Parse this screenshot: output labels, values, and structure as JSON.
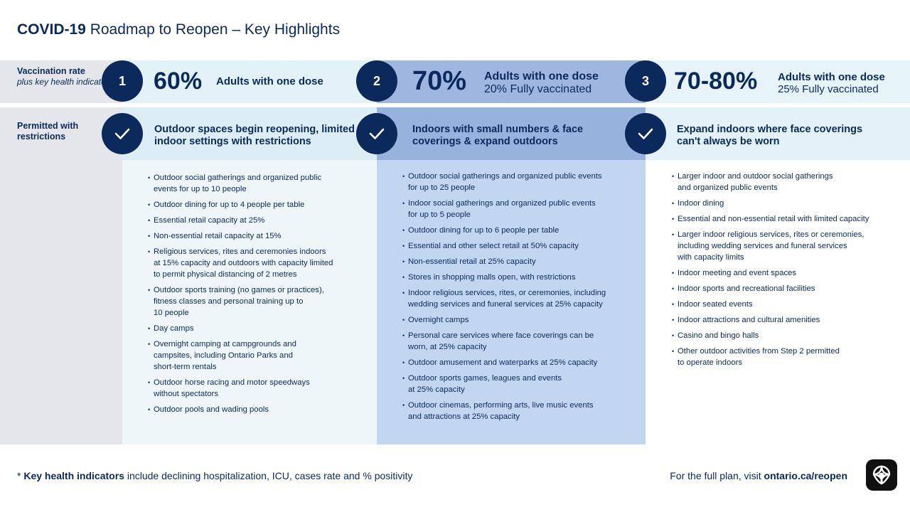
{
  "header": {
    "title_bold": "COVID-19",
    "title_rest": " Roadmap to Reopen – Key Highlights"
  },
  "rows": {
    "vaccination": {
      "label": "Vaccination rate",
      "sublabel": "plus key health indicators*"
    },
    "permitted": {
      "label": "Permitted with restrictions"
    }
  },
  "steps": [
    {
      "number": "1",
      "percent": "60%",
      "dose_line1": "Adults with one dose",
      "dose_line2": "",
      "heading": "Outdoor spaces begin reopening, limited indoor settings with restrictions",
      "items": [
        "Outdoor social gatherings and organized public\nevents for up to 10 people",
        "Outdoor dining for up to 4 people per table",
        "Essential retail capacity at 25%",
        "Non-essential retail capacity at 15%",
        "Religious services, rites and ceremonies indoors\nat 15% capacity and outdoors with capacity limited\nto permit physical distancing of 2 metres",
        "Outdoor sports training (no games or practices),\nfitness classes and personal training up to\n10 people",
        "Day camps",
        "Overnight camping at campgrounds and\ncampsites, including Ontario Parks and\nshort-term rentals",
        "Outdoor horse racing and motor speedways\nwithout spectators",
        "Outdoor pools and wading pools"
      ]
    },
    {
      "number": "2",
      "percent": "70%",
      "dose_line1": "Adults with one dose",
      "dose_line2": "20% Fully vaccinated",
      "heading": "Indoors with small numbers & face coverings & expand outdoors",
      "items": [
        "Outdoor social gatherings and organized public events\nfor up to 25 people",
        "Indoor social gatherings and organized public events\nfor up to 5 people",
        "Outdoor dining for up to 6 people per table",
        "Essential and other select retail at 50% capacity",
        "Non-essential retail at 25% capacity",
        "Stores in shopping malls open, with restrictions",
        "Indoor religious services, rites, or ceremonies, including\nwedding services and funeral services at 25% capacity",
        "Overnight camps",
        "Personal care services where face coverings can be\nworn, at 25% capacity",
        "Outdoor amusement and waterparks at 25% capacity",
        "Outdoor sports games, leagues and events\nat 25% capacity",
        "Outdoor cinemas, performing arts, live music events\nand attractions at 25% capacity"
      ]
    },
    {
      "number": "3",
      "percent": "70-80%",
      "dose_line1": "Adults with one dose",
      "dose_line2": "25% Fully vaccinated",
      "heading": "Expand indoors where face coverings can't always be worn",
      "items": [
        "Larger indoor and outdoor social gatherings\nand organized public events",
        "Indoor dining",
        "Essential and non-essential retail with limited capacity",
        "Larger indoor religious services, rites or ceremonies,\nincluding wedding services and funeral services\nwith capacity limits",
        "Indoor meeting and event spaces",
        "Indoor sports and recreational facilities",
        "Indoor seated events",
        "Indoor attractions and cultural amenities",
        "Casino and bingo halls",
        "Other outdoor activities from Step 2 permitted\nto operate indoors"
      ]
    }
  ],
  "footer": {
    "footnote_star": "* ",
    "footnote_bold": "Key health indicators",
    "footnote_rest": " include declining hospitalization, ICU, cases rate and % positivity",
    "plan_text": "For the full plan, visit ",
    "plan_link": "ontario.ca/reopen"
  },
  "colors": {
    "navy": "#0b2a5b",
    "step2_highlight": "#96b2dd",
    "step2_body": "#c3d6f1",
    "light_band": "#e3f1f8"
  },
  "icons": {
    "check": "check-icon",
    "logo": "ontario-trillium-logo"
  }
}
